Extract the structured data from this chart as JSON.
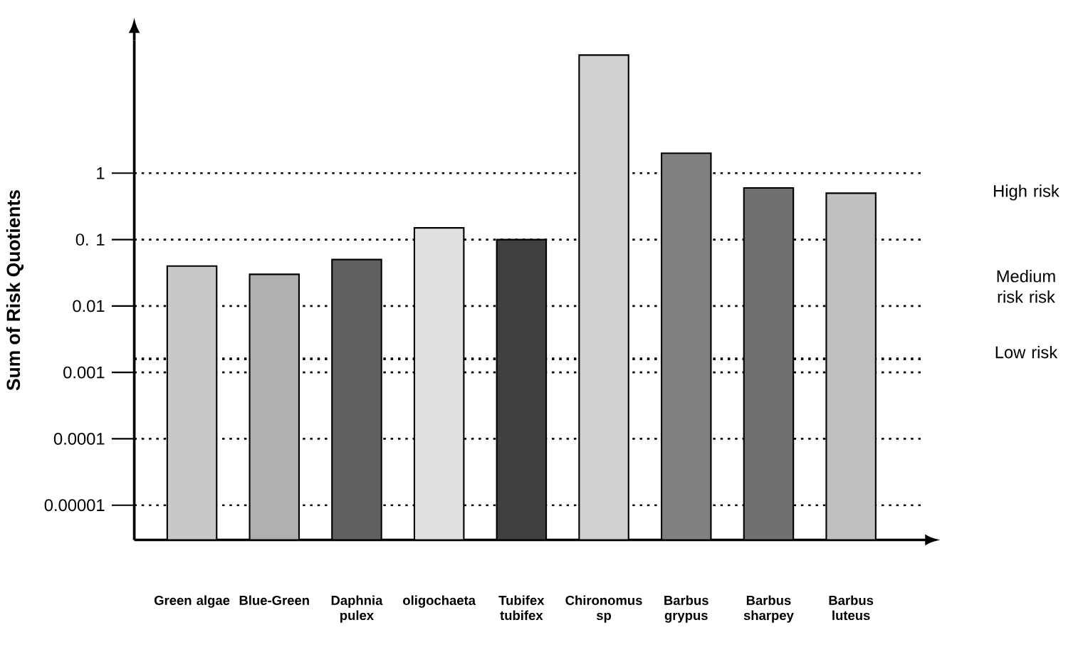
{
  "chart_data": {
    "type": "bar",
    "ylabel": "Sum of Risk Quotients",
    "categories": [
      "Green algae",
      "Blue-Green",
      "Daphnia pulex",
      "oligochaeta",
      "Tubifex tubifex",
      "Chironomus sp",
      "Barbus grypus",
      "Barbus sharpey",
      "Barbus luteus"
    ],
    "values": [
      0.04,
      0.03,
      0.05,
      0.15,
      0.1,
      60,
      2,
      0.6,
      0.5
    ],
    "colors": [
      "#c8c8c8",
      "#b0b0b0",
      "#606060",
      "#e0e0e0",
      "#404040",
      "#d0d0d0",
      "#808080",
      "#707070",
      "#c0c0c0"
    ],
    "log": "y",
    "ylim": [
      3e-06,
      100
    ],
    "grid": "y",
    "yticks": [
      1,
      {
        "value": 0.1,
        "label": "0. 1"
      },
      {
        "value": 0.01,
        "label": "0.01"
      },
      {
        "value": 0.001,
        "label": "0.001"
      },
      {
        "value": 0.0001,
        "label": "0.0001"
      },
      {
        "value": 1e-05,
        "label": "0.00001"
      }
    ],
    "ref_lines": [
      {
        "axis": "y",
        "value": 0.0016,
        "line_style": "dotted"
      }
    ],
    "annotations": [
      "High risk",
      "Medium risk risk",
      "Low risk"
    ]
  }
}
